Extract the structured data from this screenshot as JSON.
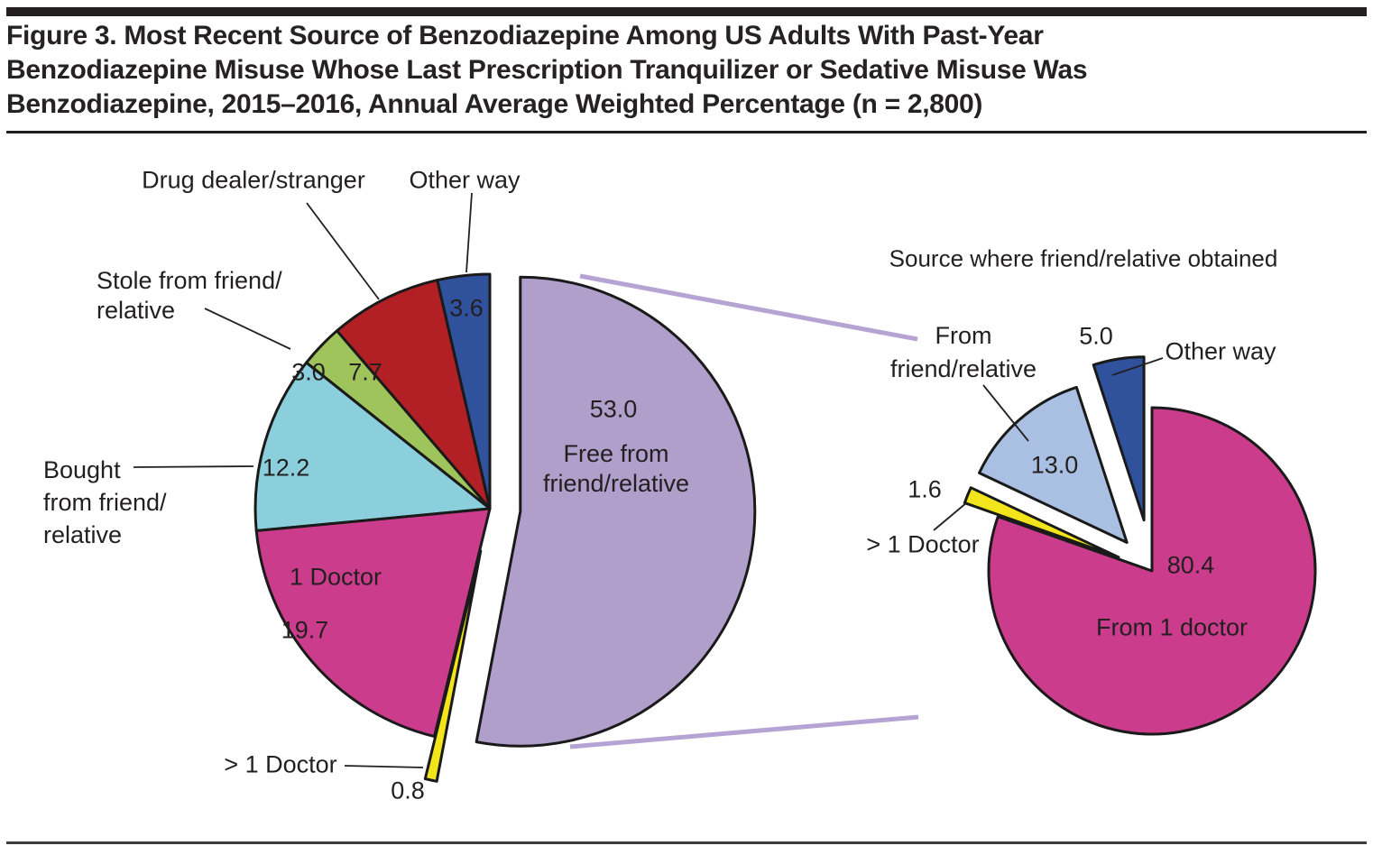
{
  "figure": {
    "title_lines": [
      "Figure 3. Most Recent Source of Benzodiazepine Among US Adults With Past-Year",
      "Benzodiazepine Misuse Whose Last Prescription Tranquilizer or Sedative Misuse Was",
      "Benzodiazepine, 2015–2016, Annual Average Weighted Percentage (n = 2,800)"
    ],
    "colors": {
      "outline": "#1a1a1a",
      "text": "#231f20",
      "connector": "#b5a3d4",
      "leader": "#231f20"
    }
  },
  "chart_data": [
    {
      "type": "pie",
      "name": "most-recent-source-pie",
      "title": "",
      "n_label": "2,800",
      "legend_position": "outside-labels",
      "slices": [
        {
          "label": "Free from friend/relative",
          "label_lines": [
            "Free from",
            "friend/relative"
          ],
          "value": 53.0,
          "value_label": "53.0",
          "color": "#b19fcb",
          "exploded": true
        },
        {
          "label": "> 1 Doctor",
          "value": 0.8,
          "value_label": "0.8",
          "color": "#f2e51b",
          "exploded": true
        },
        {
          "label": "1 Doctor",
          "value": 19.7,
          "value_label": "19.7",
          "color": "#cc3c8c",
          "exploded": false
        },
        {
          "label": "Bought from friend/relative",
          "label_lines": [
            "Bought",
            "from friend/",
            "relative"
          ],
          "value": 12.2,
          "value_label": "12.2",
          "color": "#8bcfdd",
          "exploded": false
        },
        {
          "label": "Stole from friend/relative",
          "label_lines": [
            "Stole from friend/",
            "relative"
          ],
          "value": 3.0,
          "value_label": "3.0",
          "color": "#9fc45c",
          "exploded": false
        },
        {
          "label": "Drug dealer/stranger",
          "value": 7.7,
          "value_label": "7.7",
          "color": "#b22025",
          "exploded": false
        },
        {
          "label": "Other way",
          "value": 3.6,
          "value_label": "3.6",
          "color": "#30519c",
          "exploded": false
        }
      ]
    },
    {
      "type": "pie",
      "name": "source-where-friend-relative-obtained-pie",
      "title": "Source where friend/relative obtained",
      "legend_position": "outside-labels",
      "slices": [
        {
          "label": "From 1 doctor",
          "value": 80.4,
          "value_label": "80.4",
          "color": "#cc3c8c",
          "exploded": false
        },
        {
          "label": "> 1 Doctor",
          "value": 1.6,
          "value_label": "1.6",
          "color": "#f2e51b",
          "exploded": true
        },
        {
          "label": "From friend/relative",
          "label_lines": [
            "From",
            "friend/relative"
          ],
          "value": 13.0,
          "value_label": "13.0",
          "color": "#a9c0e2",
          "exploded": true
        },
        {
          "label": "Other way",
          "value": 5.0,
          "value_label": "5.0",
          "color": "#30519c",
          "exploded": true
        }
      ]
    }
  ]
}
